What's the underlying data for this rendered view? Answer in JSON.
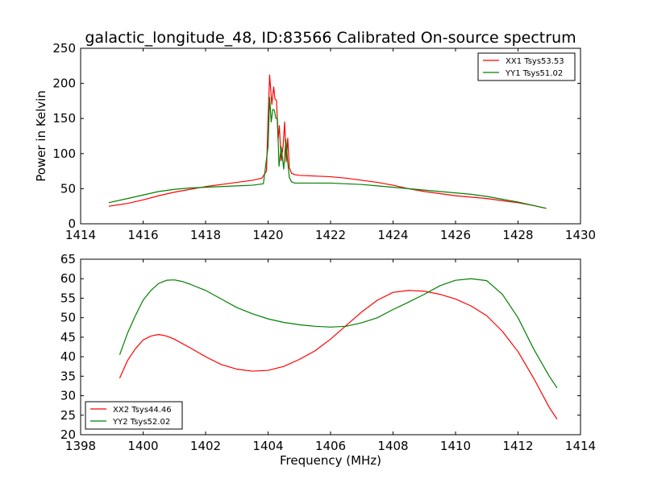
{
  "chart_data": [
    {
      "type": "line",
      "title": "galactic_longitude_48, ID:83566 Calibrated On-source spectrum",
      "xlabel": "",
      "ylabel": "Power in Kelvin",
      "xlim": [
        1414,
        1430
      ],
      "ylim": [
        0,
        250
      ],
      "xticks": [
        1414,
        1416,
        1418,
        1420,
        1422,
        1424,
        1426,
        1428,
        1430
      ],
      "yticks": [
        0,
        50,
        100,
        150,
        200,
        250
      ],
      "legend_position": "top-right",
      "grid": false,
      "series": [
        {
          "name": "XX1 Tsys53.53",
          "color": "#ff0000",
          "x": [
            1414.9,
            1415.5,
            1416,
            1416.5,
            1417,
            1417.5,
            1418,
            1418.5,
            1419,
            1419.5,
            1419.8,
            1419.95,
            1420.0,
            1420.05,
            1420.12,
            1420.18,
            1420.22,
            1420.27,
            1420.32,
            1420.36,
            1420.42,
            1420.48,
            1420.53,
            1420.58,
            1420.63,
            1420.68,
            1420.75,
            1420.85,
            1421.0,
            1421.5,
            1422,
            1422.5,
            1423,
            1423.5,
            1424,
            1424.5,
            1425,
            1425.5,
            1426,
            1426.5,
            1427,
            1427.5,
            1428,
            1428.5,
            1428.9
          ],
          "y": [
            25,
            29,
            34,
            40,
            45,
            49,
            53,
            56,
            59,
            62,
            65,
            75,
            150,
            212,
            170,
            195,
            178,
            176,
            120,
            140,
            90,
            110,
            145,
            88,
            122,
            80,
            72,
            70,
            69,
            68,
            67,
            65,
            62,
            59,
            55,
            50,
            46,
            43,
            40,
            38,
            36,
            33,
            30,
            26,
            22
          ]
        },
        {
          "name": "YY1 Tsys51.02",
          "color": "#008000",
          "x": [
            1414.9,
            1415.5,
            1416,
            1416.5,
            1417,
            1417.5,
            1418,
            1418.5,
            1419,
            1419.5,
            1419.85,
            1420.0,
            1420.05,
            1420.1,
            1420.15,
            1420.2,
            1420.25,
            1420.3,
            1420.35,
            1420.42,
            1420.5,
            1420.57,
            1420.62,
            1420.68,
            1420.75,
            1420.85,
            1421,
            1421.5,
            1422,
            1422.5,
            1423,
            1423.5,
            1424,
            1424.5,
            1425,
            1425.5,
            1426,
            1426.5,
            1427,
            1427.5,
            1428,
            1428.5,
            1428.9
          ],
          "y": [
            30,
            36,
            41,
            46,
            49,
            51,
            52,
            53,
            54,
            55,
            57,
            110,
            180,
            145,
            163,
            162,
            150,
            150,
            82,
            110,
            78,
            120,
            92,
            66,
            60,
            58,
            58,
            58,
            58,
            57,
            56,
            54,
            52,
            50,
            48,
            46,
            44,
            42,
            39,
            35,
            31,
            26,
            22
          ]
        }
      ]
    },
    {
      "type": "line",
      "title": "",
      "xlabel": "Frequency (MHz)",
      "ylabel": "",
      "xlim": [
        1398,
        1414
      ],
      "ylim": [
        20,
        65
      ],
      "xticks": [
        1398,
        1400,
        1402,
        1404,
        1406,
        1408,
        1410,
        1412,
        1414
      ],
      "yticks": [
        20,
        25,
        30,
        35,
        40,
        45,
        50,
        55,
        60,
        65
      ],
      "legend_position": "bottom-left",
      "grid": false,
      "series": [
        {
          "name": "XX2 Tsys44.46",
          "color": "#ff0000",
          "x": [
            1399.25,
            1399.5,
            1399.75,
            1400,
            1400.25,
            1400.5,
            1400.75,
            1401,
            1401.5,
            1402,
            1402.5,
            1403,
            1403.5,
            1404,
            1404.5,
            1405,
            1405.5,
            1406,
            1406.5,
            1407,
            1407.5,
            1408,
            1408.5,
            1409,
            1409.5,
            1410,
            1410.5,
            1411,
            1411.5,
            1412,
            1412.5,
            1413,
            1413.25
          ],
          "y": [
            34.5,
            39,
            42,
            44.3,
            45.3,
            45.7,
            45.3,
            44.5,
            42.3,
            40,
            38,
            36.8,
            36.3,
            36.5,
            37.5,
            39.3,
            41.5,
            44.5,
            48,
            51.5,
            54.5,
            56.5,
            57,
            56.8,
            56,
            54.8,
            53,
            50.5,
            46.5,
            41.3,
            34.5,
            27,
            24
          ]
        },
        {
          "name": "YY2 Tsys52.02",
          "color": "#008000",
          "x": [
            1399.25,
            1399.5,
            1399.75,
            1400,
            1400.25,
            1400.5,
            1400.75,
            1401,
            1401.25,
            1401.5,
            1402,
            1402.5,
            1403,
            1403.5,
            1404,
            1404.5,
            1405,
            1405.5,
            1406,
            1406.5,
            1407,
            1407.5,
            1408,
            1408.5,
            1409,
            1409.5,
            1410,
            1410.5,
            1411,
            1411.5,
            1412,
            1412.5,
            1413,
            1413.25
          ],
          "y": [
            40.5,
            46,
            50.5,
            54.5,
            57,
            58.8,
            59.6,
            59.7,
            59.3,
            58.6,
            57,
            54.8,
            52.6,
            51,
            49.7,
            48.8,
            48.2,
            47.8,
            47.6,
            47.8,
            48.7,
            50,
            52.1,
            54,
            56,
            58.2,
            59.6,
            60,
            59.5,
            56,
            50,
            42,
            35,
            32
          ]
        }
      ]
    }
  ]
}
